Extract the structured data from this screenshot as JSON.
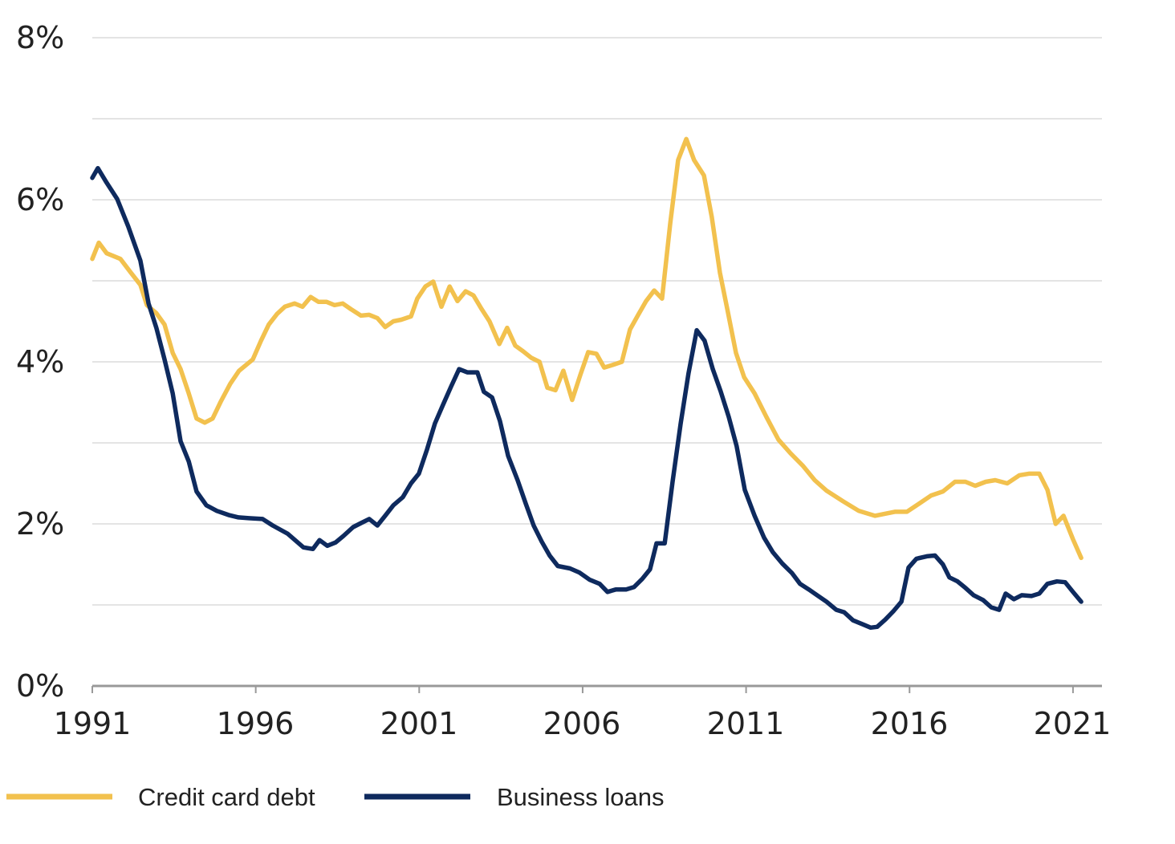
{
  "chart_data": {
    "type": "line",
    "title": "",
    "xlabel": "",
    "ylabel": "",
    "xlim": [
      1991,
      2021.9
    ],
    "ylim": [
      0,
      8
    ],
    "grid": true,
    "legend_position": "bottom",
    "x_ticks": [
      "1991",
      "1996",
      "2001",
      "2006",
      "2011",
      "2016",
      "2021"
    ],
    "x_tick_values": [
      1991,
      1996,
      2001,
      2006,
      2011,
      2016,
      2021
    ],
    "y_ticks": [
      "0%",
      "2%",
      "4%",
      "6%",
      "8%"
    ],
    "y_tick_values": [
      0,
      2,
      4,
      6,
      8
    ],
    "y_gridlines": [
      1,
      2,
      3,
      4,
      5,
      6,
      7,
      8
    ],
    "series": [
      {
        "name": "Credit card debt",
        "color": "#F2C14E",
        "points": [
          [
            1991.0,
            5.27
          ],
          [
            1991.2,
            5.47
          ],
          [
            1991.44,
            5.34
          ],
          [
            1991.86,
            5.27
          ],
          [
            1992.18,
            5.1
          ],
          [
            1992.47,
            4.95
          ],
          [
            1992.67,
            4.7
          ],
          [
            1992.96,
            4.6
          ],
          [
            1993.21,
            4.46
          ],
          [
            1993.46,
            4.11
          ],
          [
            1993.7,
            3.91
          ],
          [
            1993.95,
            3.61
          ],
          [
            1994.19,
            3.3
          ],
          [
            1994.44,
            3.25
          ],
          [
            1994.68,
            3.3
          ],
          [
            1994.93,
            3.51
          ],
          [
            1995.22,
            3.73
          ],
          [
            1995.49,
            3.89
          ],
          [
            1995.91,
            4.03
          ],
          [
            1996.16,
            4.26
          ],
          [
            1996.4,
            4.46
          ],
          [
            1996.65,
            4.59
          ],
          [
            1996.89,
            4.68
          ],
          [
            1997.19,
            4.72
          ],
          [
            1997.43,
            4.68
          ],
          [
            1997.68,
            4.8
          ],
          [
            1997.92,
            4.74
          ],
          [
            1998.17,
            4.74
          ],
          [
            1998.41,
            4.7
          ],
          [
            1998.66,
            4.72
          ],
          [
            1998.91,
            4.65
          ],
          [
            1999.22,
            4.57
          ],
          [
            1999.47,
            4.58
          ],
          [
            1999.72,
            4.54
          ],
          [
            1999.96,
            4.43
          ],
          [
            2000.21,
            4.5
          ],
          [
            2000.45,
            4.52
          ],
          [
            2000.75,
            4.56
          ],
          [
            2000.94,
            4.78
          ],
          [
            2001.19,
            4.93
          ],
          [
            2001.43,
            4.99
          ],
          [
            2001.68,
            4.68
          ],
          [
            2001.93,
            4.93
          ],
          [
            2002.17,
            4.75
          ],
          [
            2002.42,
            4.87
          ],
          [
            2002.66,
            4.82
          ],
          [
            2002.91,
            4.65
          ],
          [
            2003.15,
            4.5
          ],
          [
            2003.45,
            4.22
          ],
          [
            2003.69,
            4.42
          ],
          [
            2003.94,
            4.2
          ],
          [
            2004.18,
            4.13
          ],
          [
            2004.43,
            4.05
          ],
          [
            2004.68,
            4.0
          ],
          [
            2004.92,
            3.68
          ],
          [
            2005.17,
            3.65
          ],
          [
            2005.41,
            3.89
          ],
          [
            2005.68,
            3.53
          ],
          [
            2005.93,
            3.84
          ],
          [
            2006.17,
            4.12
          ],
          [
            2006.42,
            4.1
          ],
          [
            2006.66,
            3.93
          ],
          [
            2006.91,
            3.96
          ],
          [
            2007.2,
            4.0
          ],
          [
            2007.45,
            4.4
          ],
          [
            2007.7,
            4.58
          ],
          [
            2007.94,
            4.75
          ],
          [
            2008.19,
            4.88
          ],
          [
            2008.43,
            4.78
          ],
          [
            2008.68,
            5.71
          ],
          [
            2008.92,
            6.49
          ],
          [
            2009.17,
            6.75
          ],
          [
            2009.41,
            6.49
          ],
          [
            2009.71,
            6.3
          ],
          [
            2009.95,
            5.79
          ],
          [
            2010.2,
            5.1
          ],
          [
            2010.44,
            4.62
          ],
          [
            2010.69,
            4.11
          ],
          [
            2010.94,
            3.81
          ],
          [
            2011.26,
            3.61
          ],
          [
            2011.62,
            3.32
          ],
          [
            2011.99,
            3.04
          ],
          [
            2012.36,
            2.87
          ],
          [
            2012.73,
            2.72
          ],
          [
            2013.1,
            2.54
          ],
          [
            2013.46,
            2.41
          ],
          [
            2013.96,
            2.28
          ],
          [
            2014.45,
            2.16
          ],
          [
            2014.94,
            2.1
          ],
          [
            2015.18,
            2.12
          ],
          [
            2015.55,
            2.15
          ],
          [
            2015.92,
            2.15
          ],
          [
            2016.29,
            2.25
          ],
          [
            2016.66,
            2.35
          ],
          [
            2017.02,
            2.4
          ],
          [
            2017.39,
            2.52
          ],
          [
            2017.71,
            2.52
          ],
          [
            2018.01,
            2.47
          ],
          [
            2018.33,
            2.52
          ],
          [
            2018.62,
            2.54
          ],
          [
            2018.99,
            2.5
          ],
          [
            2019.36,
            2.6
          ],
          [
            2019.65,
            2.62
          ],
          [
            2019.97,
            2.62
          ],
          [
            2020.22,
            2.42
          ],
          [
            2020.47,
            2.0
          ],
          [
            2020.71,
            2.1
          ],
          [
            2021.0,
            1.81
          ],
          [
            2021.25,
            1.58
          ]
        ]
      },
      {
        "name": "Business loans",
        "color": "#0E2A5E",
        "points": [
          [
            1991.0,
            6.27
          ],
          [
            1991.17,
            6.39
          ],
          [
            1991.44,
            6.21
          ],
          [
            1991.76,
            6.01
          ],
          [
            1992.1,
            5.67
          ],
          [
            1992.47,
            5.25
          ],
          [
            1992.72,
            4.72
          ],
          [
            1992.96,
            4.42
          ],
          [
            1993.21,
            4.03
          ],
          [
            1993.46,
            3.61
          ],
          [
            1993.7,
            3.02
          ],
          [
            1993.95,
            2.77
          ],
          [
            1994.19,
            2.4
          ],
          [
            1994.49,
            2.23
          ],
          [
            1994.81,
            2.16
          ],
          [
            1995.17,
            2.11
          ],
          [
            1995.47,
            2.08
          ],
          [
            1995.79,
            2.07
          ],
          [
            1996.21,
            2.06
          ],
          [
            1996.52,
            1.98
          ],
          [
            1996.97,
            1.88
          ],
          [
            1997.46,
            1.71
          ],
          [
            1997.75,
            1.69
          ],
          [
            1997.95,
            1.8
          ],
          [
            1998.19,
            1.73
          ],
          [
            1998.44,
            1.77
          ],
          [
            1998.68,
            1.85
          ],
          [
            1998.98,
            1.96
          ],
          [
            1999.22,
            2.01
          ],
          [
            1999.47,
            2.06
          ],
          [
            1999.72,
            1.98
          ],
          [
            1999.96,
            2.1
          ],
          [
            2000.21,
            2.23
          ],
          [
            2000.5,
            2.33
          ],
          [
            2000.75,
            2.5
          ],
          [
            2000.99,
            2.62
          ],
          [
            2001.24,
            2.92
          ],
          [
            2001.48,
            3.24
          ],
          [
            2001.73,
            3.47
          ],
          [
            2001.97,
            3.69
          ],
          [
            2002.22,
            3.91
          ],
          [
            2002.47,
            3.87
          ],
          [
            2002.78,
            3.87
          ],
          [
            2002.98,
            3.63
          ],
          [
            2003.23,
            3.56
          ],
          [
            2003.47,
            3.27
          ],
          [
            2003.72,
            2.84
          ],
          [
            2004.01,
            2.54
          ],
          [
            2004.26,
            2.25
          ],
          [
            2004.5,
            1.98
          ],
          [
            2004.75,
            1.78
          ],
          [
            2004.99,
            1.61
          ],
          [
            2005.24,
            1.48
          ],
          [
            2005.61,
            1.45
          ],
          [
            2005.9,
            1.4
          ],
          [
            2006.22,
            1.31
          ],
          [
            2006.52,
            1.26
          ],
          [
            2006.76,
            1.16
          ],
          [
            2007.01,
            1.19
          ],
          [
            2007.33,
            1.19
          ],
          [
            2007.57,
            1.22
          ],
          [
            2007.82,
            1.32
          ],
          [
            2008.06,
            1.44
          ],
          [
            2008.26,
            1.76
          ],
          [
            2008.51,
            1.76
          ],
          [
            2008.75,
            2.52
          ],
          [
            2009.0,
            3.24
          ],
          [
            2009.24,
            3.86
          ],
          [
            2009.49,
            4.39
          ],
          [
            2009.73,
            4.26
          ],
          [
            2009.98,
            3.91
          ],
          [
            2010.22,
            3.64
          ],
          [
            2010.47,
            3.32
          ],
          [
            2010.71,
            2.96
          ],
          [
            2010.96,
            2.42
          ],
          [
            2011.26,
            2.1
          ],
          [
            2011.55,
            1.83
          ],
          [
            2011.82,
            1.65
          ],
          [
            2012.11,
            1.51
          ],
          [
            2012.41,
            1.39
          ],
          [
            2012.65,
            1.26
          ],
          [
            2012.92,
            1.19
          ],
          [
            2013.17,
            1.12
          ],
          [
            2013.46,
            1.04
          ],
          [
            2013.76,
            0.94
          ],
          [
            2014.0,
            0.91
          ],
          [
            2014.27,
            0.81
          ],
          [
            2014.57,
            0.76
          ],
          [
            2014.81,
            0.72
          ],
          [
            2015.01,
            0.73
          ],
          [
            2015.26,
            0.82
          ],
          [
            2015.5,
            0.92
          ],
          [
            2015.75,
            1.04
          ],
          [
            2015.97,
            1.46
          ],
          [
            2016.21,
            1.57
          ],
          [
            2016.53,
            1.6
          ],
          [
            2016.78,
            1.61
          ],
          [
            2017.02,
            1.5
          ],
          [
            2017.22,
            1.34
          ],
          [
            2017.47,
            1.29
          ],
          [
            2017.71,
            1.21
          ],
          [
            2017.96,
            1.12
          ],
          [
            2018.25,
            1.06
          ],
          [
            2018.5,
            0.97
          ],
          [
            2018.74,
            0.94
          ],
          [
            2018.94,
            1.14
          ],
          [
            2019.19,
            1.07
          ],
          [
            2019.43,
            1.12
          ],
          [
            2019.73,
            1.11
          ],
          [
            2019.97,
            1.14
          ],
          [
            2020.22,
            1.26
          ],
          [
            2020.51,
            1.29
          ],
          [
            2020.76,
            1.28
          ],
          [
            2021.0,
            1.16
          ],
          [
            2021.25,
            1.04
          ]
        ]
      }
    ]
  }
}
